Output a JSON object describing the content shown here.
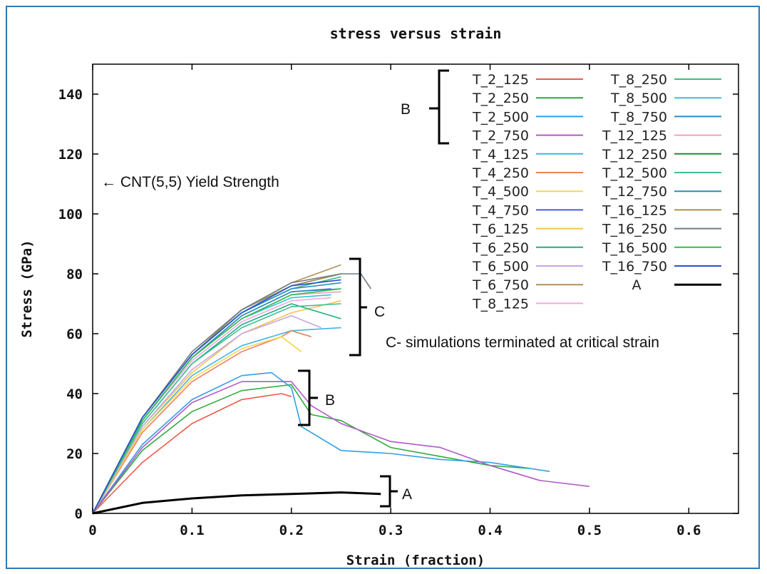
{
  "chart_data": {
    "type": "line",
    "title": "stress versus strain",
    "xlabel": "Strain (fraction)",
    "ylabel": "Stress (GPa)",
    "xlim": [
      0,
      0.65
    ],
    "ylim": [
      0,
      150
    ],
    "x_ticks": [
      0,
      0.1,
      0.2,
      0.3,
      0.4,
      0.5,
      0.6
    ],
    "x_tick_labels": [
      "0",
      "0.1",
      "0.2",
      "0.3",
      "0.4",
      "0.5",
      "0.6"
    ],
    "y_ticks": [
      0,
      20,
      40,
      60,
      80,
      100,
      120,
      140
    ],
    "y_tick_labels": [
      "0",
      "20",
      "40",
      "60",
      "80",
      "100",
      "120",
      "140"
    ],
    "grid": false,
    "legend_placement": "top-right",
    "annotations": {
      "yield_strength": "← CNT(5,5) Yield Strength",
      "group_c_note": "C- simulations terminated at critical strain",
      "bracket_c": "C",
      "bracket_b": "B",
      "bracket_a": "A",
      "legend_bracket_b": "B"
    },
    "series": [
      {
        "name": "T_2_125",
        "color": "#f05a4a",
        "x": [
          0,
          0.05,
          0.1,
          0.15,
          0.19,
          0.2
        ],
        "y": [
          0,
          17,
          30,
          38,
          40,
          39
        ]
      },
      {
        "name": "T_2_250",
        "color": "#2eaa3c",
        "x": [
          0,
          0.05,
          0.1,
          0.15,
          0.2,
          0.22,
          0.25,
          0.3,
          0.35,
          0.4,
          0.44
        ],
        "y": [
          0,
          21,
          34,
          41,
          43,
          33,
          31,
          22,
          19,
          16,
          15
        ]
      },
      {
        "name": "T_2_500",
        "color": "#2fa0e6",
        "x": [
          0,
          0.05,
          0.1,
          0.15,
          0.18,
          0.2,
          0.21,
          0.25,
          0.3,
          0.35,
          0.4,
          0.46
        ],
        "y": [
          0,
          23,
          38,
          46,
          47,
          42,
          29,
          21,
          20,
          18,
          17,
          14
        ]
      },
      {
        "name": "T_2_750",
        "color": "#b259c8",
        "x": [
          0,
          0.05,
          0.1,
          0.15,
          0.2,
          0.22,
          0.25,
          0.3,
          0.35,
          0.4,
          0.45,
          0.5
        ],
        "y": [
          0,
          22,
          37,
          44,
          44,
          36,
          30,
          24,
          22,
          16,
          11,
          9
        ]
      },
      {
        "name": "T_4_125",
        "color": "#42b4e8",
        "x": [
          0,
          0.05,
          0.1,
          0.15,
          0.2,
          0.25
        ],
        "y": [
          0,
          28,
          46,
          56,
          61,
          62
        ]
      },
      {
        "name": "T_4_250",
        "color": "#f08060",
        "x": [
          0,
          0.05,
          0.1,
          0.15,
          0.19,
          0.2,
          0.22
        ],
        "y": [
          0,
          27,
          44,
          54,
          59,
          61,
          59
        ]
      },
      {
        "name": "T_4_500",
        "color": "#f2d948",
        "x": [
          0,
          0.05,
          0.1,
          0.15,
          0.19,
          0.21
        ],
        "y": [
          0,
          28,
          45,
          55,
          59,
          54
        ]
      },
      {
        "name": "T_4_750",
        "color": "#4a5cd0",
        "x": [
          0,
          0.05,
          0.1,
          0.15,
          0.2,
          0.24
        ],
        "y": [
          0,
          31,
          52,
          66,
          74,
          75
        ]
      },
      {
        "name": "T_6_125",
        "color": "#f6c44e",
        "x": [
          0,
          0.05,
          0.1,
          0.15,
          0.2,
          0.25
        ],
        "y": [
          0,
          29,
          47,
          60,
          67,
          71
        ]
      },
      {
        "name": "T_6_250",
        "color": "#1fae82",
        "x": [
          0,
          0.05,
          0.1,
          0.15,
          0.2,
          0.25
        ],
        "y": [
          0,
          30,
          50,
          63,
          70,
          65
        ]
      },
      {
        "name": "T_6_500",
        "color": "#c4a6e6",
        "x": [
          0,
          0.05,
          0.1,
          0.15,
          0.2,
          0.23
        ],
        "y": [
          0,
          29,
          48,
          60,
          66,
          62
        ]
      },
      {
        "name": "T_6_750",
        "color": "#b48f5a",
        "x": [
          0,
          0.05,
          0.1,
          0.15,
          0.2,
          0.25
        ],
        "y": [
          0,
          32,
          53,
          68,
          77,
          83
        ]
      },
      {
        "name": "T_8_125",
        "color": "#f2a8e0",
        "x": [
          0,
          0.05,
          0.1,
          0.15,
          0.2,
          0.24
        ],
        "y": [
          0,
          31,
          51,
          64,
          71,
          72
        ]
      },
      {
        "name": "T_8_250",
        "color": "#3cbf7a",
        "x": [
          0,
          0.05,
          0.1,
          0.15,
          0.2,
          0.25
        ],
        "y": [
          0,
          32,
          53,
          67,
          75,
          79
        ]
      },
      {
        "name": "T_8_500",
        "color": "#36c2d8",
        "x": [
          0,
          0.05,
          0.1,
          0.15,
          0.2,
          0.24
        ],
        "y": [
          0,
          31,
          52,
          65,
          72,
          73
        ]
      },
      {
        "name": "T_8_750",
        "color": "#2a8cc0",
        "x": [
          0,
          0.05,
          0.1,
          0.15,
          0.2,
          0.25
        ],
        "y": [
          0,
          32,
          53,
          67,
          75,
          77
        ]
      },
      {
        "name": "T_12_125",
        "color": "#f0a0b8",
        "x": [
          0,
          0.05,
          0.1,
          0.15,
          0.2,
          0.25
        ],
        "y": [
          0,
          31,
          52,
          65,
          73,
          74
        ]
      },
      {
        "name": "T_12_250",
        "color": "#1e8a3a",
        "x": [
          0,
          0.05,
          0.1,
          0.15,
          0.2,
          0.25
        ],
        "y": [
          0,
          32,
          53,
          68,
          76,
          80
        ]
      },
      {
        "name": "T_12_500",
        "color": "#3dbf96",
        "x": [
          0,
          0.05,
          0.1,
          0.15,
          0.2,
          0.25
        ],
        "y": [
          0,
          30,
          50,
          62,
          69,
          70
        ]
      },
      {
        "name": "T_12_750",
        "color": "#2c8fb8",
        "x": [
          0,
          0.05,
          0.1,
          0.15,
          0.2,
          0.25
        ],
        "y": [
          0,
          31,
          52,
          66,
          74,
          75
        ]
      },
      {
        "name": "T_16_125",
        "color": "#a89050",
        "x": [
          0,
          0.05,
          0.1,
          0.15,
          0.2,
          0.25
        ],
        "y": [
          0,
          32,
          53,
          68,
          76,
          80
        ]
      },
      {
        "name": "T_16_250",
        "color": "#707a84",
        "x": [
          0,
          0.05,
          0.1,
          0.15,
          0.2,
          0.25,
          0.27,
          0.28
        ],
        "y": [
          0,
          32,
          54,
          68,
          77,
          80,
          80,
          75
        ]
      },
      {
        "name": "T_16_500",
        "color": "#2fbf4a",
        "x": [
          0,
          0.05,
          0.1,
          0.15,
          0.2,
          0.25
        ],
        "y": [
          0,
          31,
          52,
          65,
          73,
          75
        ]
      },
      {
        "name": "T_16_750",
        "color": "#2650d8",
        "x": [
          0,
          0.05,
          0.1,
          0.15,
          0.2,
          0.25
        ],
        "y": [
          0,
          32,
          53,
          67,
          76,
          78
        ]
      },
      {
        "name": "A",
        "color": "#000000",
        "x": [
          0,
          0.05,
          0.1,
          0.15,
          0.2,
          0.25,
          0.29
        ],
        "y": [
          0,
          3.5,
          5,
          6,
          6.5,
          7,
          6.5
        ]
      }
    ]
  }
}
